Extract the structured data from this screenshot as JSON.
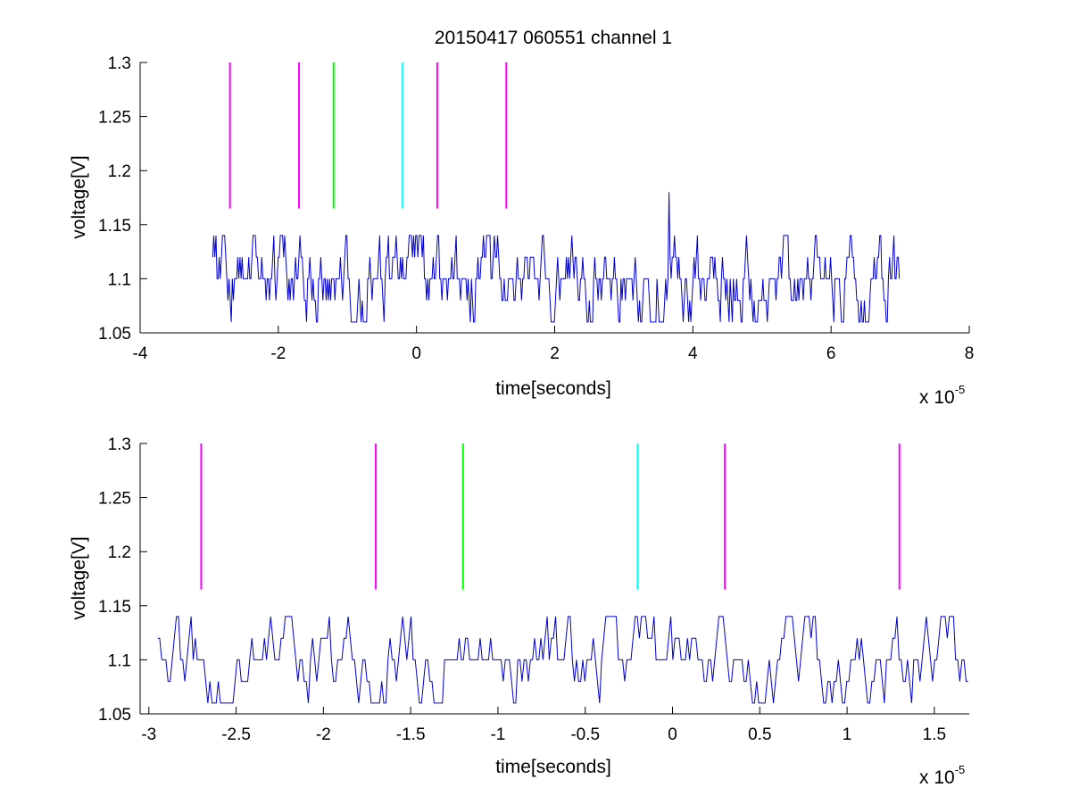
{
  "figure": {
    "title": "20150417 060551 channel 1",
    "colors": {
      "signal": "#0000cc",
      "magenta": "#ff00ff",
      "green": "#00ff00",
      "cyan": "#00ffff",
      "axes": "#000000",
      "background": "#ffffff"
    }
  },
  "chart_data": [
    {
      "type": "line",
      "title": "20150417 060551 channel 1",
      "xlabel": "time[seconds]",
      "ylabel": "voltage[V]",
      "x_multiplier_label": "x 10",
      "x_multiplier_exponent": "-5",
      "xlim": [
        -4,
        8
      ],
      "ylim": [
        1.05,
        1.3
      ],
      "xticks": [
        -4,
        -2,
        0,
        2,
        4,
        6,
        8
      ],
      "xtick_labels": [
        "-4",
        "-2",
        "0",
        "2",
        "4",
        "6",
        "8"
      ],
      "yticks": [
        1.05,
        1.1,
        1.15,
        1.2,
        1.25,
        1.3
      ],
      "ytick_labels": [
        "1.05",
        "1.1",
        "1.15",
        "1.2",
        "1.25",
        "1.3"
      ],
      "grid": false,
      "signal": {
        "x_start": -2.95,
        "x_end": 7.0,
        "levels": [
          1.06,
          1.08,
          1.1,
          1.12,
          1.14
        ],
        "baseline": 1.1,
        "spike": {
          "x": 3.65,
          "y": 1.18
        }
      },
      "markers": [
        {
          "x": -2.7,
          "y_from": 1.165,
          "y_to": 1.3,
          "color": "magenta"
        },
        {
          "x": -1.7,
          "y_from": 1.165,
          "y_to": 1.3,
          "color": "magenta"
        },
        {
          "x": -1.2,
          "y_from": 1.165,
          "y_to": 1.3,
          "color": "green"
        },
        {
          "x": -0.2,
          "y_from": 1.165,
          "y_to": 1.3,
          "color": "cyan"
        },
        {
          "x": 0.3,
          "y_from": 1.165,
          "y_to": 1.3,
          "color": "magenta"
        },
        {
          "x": 1.3,
          "y_from": 1.165,
          "y_to": 1.3,
          "color": "magenta"
        }
      ]
    },
    {
      "type": "line",
      "title": "",
      "xlabel": "time[seconds]",
      "ylabel": "voltage[V]",
      "x_multiplier_label": "x 10",
      "x_multiplier_exponent": "-5",
      "xlim": [
        -3.05,
        1.7
      ],
      "ylim": [
        1.05,
        1.3
      ],
      "xticks": [
        -3,
        -2.5,
        -2,
        -1.5,
        -1,
        -0.5,
        0,
        0.5,
        1,
        1.5
      ],
      "xtick_labels": [
        "-3",
        "-2.5",
        "-2",
        "-1.5",
        "-1",
        "-0.5",
        "0",
        "0.5",
        "1",
        "1.5"
      ],
      "yticks": [
        1.05,
        1.1,
        1.15,
        1.2,
        1.25,
        1.3
      ],
      "ytick_labels": [
        "1.05",
        "1.1",
        "1.15",
        "1.2",
        "1.25",
        "1.3"
      ],
      "grid": false,
      "signal": {
        "x_start": -2.95,
        "x_end": 1.7,
        "levels": [
          1.06,
          1.08,
          1.1,
          1.12,
          1.14
        ],
        "baseline": 1.1
      },
      "markers": [
        {
          "x": -2.7,
          "y_from": 1.165,
          "y_to": 1.3,
          "color": "magenta"
        },
        {
          "x": -1.7,
          "y_from": 1.165,
          "y_to": 1.3,
          "color": "magenta"
        },
        {
          "x": -1.2,
          "y_from": 1.165,
          "y_to": 1.3,
          "color": "green"
        },
        {
          "x": -0.2,
          "y_from": 1.165,
          "y_to": 1.3,
          "color": "cyan"
        },
        {
          "x": 0.3,
          "y_from": 1.165,
          "y_to": 1.3,
          "color": "magenta"
        },
        {
          "x": 1.3,
          "y_from": 1.165,
          "y_to": 1.3,
          "color": "magenta"
        }
      ]
    }
  ]
}
